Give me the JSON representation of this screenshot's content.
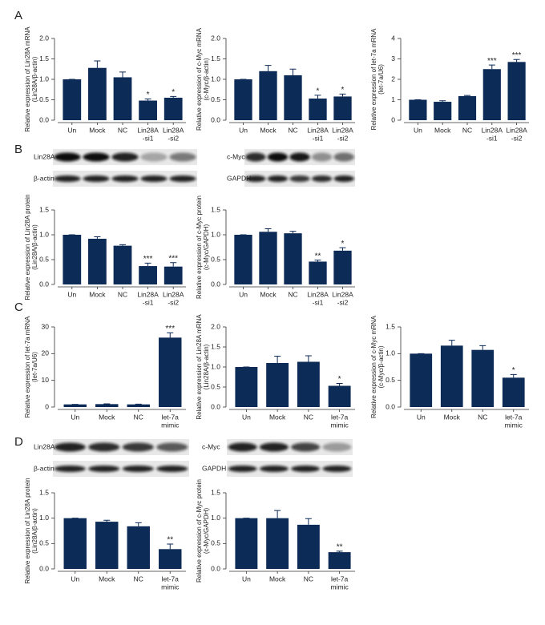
{
  "panel_labels": [
    "A",
    "B",
    "C",
    "D"
  ],
  "blots": [
    {
      "labels": [
        "Lin28A",
        "β-actin"
      ]
    },
    {
      "labels": [
        "c-Myc",
        "GAPDH"
      ]
    },
    {
      "labels": [
        "Lin28A",
        "β-actin"
      ]
    },
    {
      "labels": [
        "c-Myc",
        "GAPDH"
      ]
    }
  ],
  "chart_data": [
    {
      "type": "bar",
      "ylabel": [
        "Relative expression of Lin28A mRNA",
        "(Lin28A/β-actin)"
      ],
      "categories": [
        [
          "Un"
        ],
        [
          "Mock"
        ],
        [
          "NC"
        ],
        [
          "Lin28A",
          "-si1"
        ],
        [
          "Lin28A",
          "-si2"
        ]
      ],
      "values": [
        1.0,
        1.28,
        1.05,
        0.48,
        0.55
      ],
      "errors": [
        0,
        0.17,
        0.13,
        0.04,
        0.03
      ],
      "annotations": [
        null,
        null,
        null,
        "*",
        "*"
      ],
      "color": "#0d2b57",
      "ylim": [
        0,
        2
      ],
      "yticks": [
        {
          "value": 0,
          "label": "0.0"
        },
        0.5,
        {
          "value": 1,
          "label": "1.0"
        },
        1.5,
        {
          "value": 2,
          "label": "2.0"
        }
      ]
    },
    {
      "type": "bar",
      "ylabel": [
        "Relative expression of c-Myc mRNA",
        "(c-Myc/β-actin)"
      ],
      "categories": [
        [
          "Un"
        ],
        [
          "Mock"
        ],
        [
          "NC"
        ],
        [
          "Lin28A",
          "-si1"
        ],
        [
          "Lin28A",
          "-si2"
        ]
      ],
      "values": [
        1.0,
        1.2,
        1.1,
        0.53,
        0.58
      ],
      "errors": [
        0,
        0.14,
        0.15,
        0.08,
        0.06
      ],
      "annotations": [
        null,
        null,
        null,
        "*",
        "*"
      ],
      "color": "#0d2b57",
      "ylim": [
        0,
        2
      ],
      "yticks": [
        {
          "value": 0,
          "label": "0.0"
        },
        0.5,
        {
          "value": 1,
          "label": "1.0"
        },
        1.5,
        {
          "value": 2,
          "label": "2.0"
        }
      ]
    },
    {
      "type": "bar",
      "ylabel": [
        "Relative expression of let-7a mRNA",
        "(let-7a/U6)"
      ],
      "categories": [
        [
          "Un"
        ],
        [
          "Mock"
        ],
        [
          "NC"
        ],
        [
          "Lin28A",
          "-si1"
        ],
        [
          "Lin28A",
          "-si2"
        ]
      ],
      "values": [
        1.0,
        0.9,
        1.18,
        2.5,
        2.85
      ],
      "errors": [
        0,
        0.05,
        0.03,
        0.2,
        0.12
      ],
      "annotations": [
        null,
        null,
        null,
        "***",
        "***"
      ],
      "color": "#0d2b57",
      "ylim": [
        0,
        4
      ],
      "yticks": [
        0,
        1,
        2,
        3,
        4
      ]
    },
    {
      "type": "bar",
      "ylabel": [
        "Relative expression of Lin28A protein",
        "(Lin28A/β-actin)"
      ],
      "categories": [
        [
          "Un"
        ],
        [
          "Mock"
        ],
        [
          "NC"
        ],
        [
          "Lin28A",
          "-si1"
        ],
        [
          "Lin28A",
          "-si2"
        ]
      ],
      "values": [
        1.0,
        0.92,
        0.78,
        0.37,
        0.36
      ],
      "errors": [
        0,
        0.04,
        0.02,
        0.06,
        0.08
      ],
      "annotations": [
        null,
        null,
        null,
        "***",
        "***"
      ],
      "color": "#0d2b57",
      "ylim": [
        0,
        1.5
      ],
      "yticks": [
        {
          "value": 0,
          "label": "0.0"
        },
        0.5,
        {
          "value": 1,
          "label": "1.0"
        },
        1.5
      ]
    },
    {
      "type": "bar",
      "ylabel": [
        "Relative expression of c-Myc protein",
        "(c-Myc/GAPDH)"
      ],
      "categories": [
        [
          "Un"
        ],
        [
          "Mock"
        ],
        [
          "NC"
        ],
        [
          "Lin28A",
          "-si1"
        ],
        [
          "Lin28A",
          "-si2"
        ]
      ],
      "values": [
        1.0,
        1.06,
        1.03,
        0.46,
        0.68
      ],
      "errors": [
        0,
        0.06,
        0.04,
        0.03,
        0.06
      ],
      "annotations": [
        null,
        null,
        null,
        "**",
        "*"
      ],
      "color": "#0d2b57",
      "ylim": [
        0,
        1.5
      ],
      "yticks": [
        {
          "value": 0,
          "label": "0.0"
        },
        0.5,
        {
          "value": 1,
          "label": "1.0"
        },
        1.5
      ]
    },
    {
      "type": "bar",
      "ylabel": [
        "Relative expression of let-7a mRNA",
        "(let-7a/U6)"
      ],
      "categories": [
        [
          "Un"
        ],
        [
          "Mock"
        ],
        [
          "NC"
        ],
        [
          "let-7a",
          "mimic"
        ]
      ],
      "values": [
        1.0,
        1.1,
        1.0,
        26
      ],
      "errors": [
        0,
        0.1,
        0.1,
        1.8
      ],
      "annotations": [
        null,
        null,
        null,
        "***"
      ],
      "color": "#0d2b57",
      "ylim": [
        0,
        30
      ],
      "yticks": [
        0,
        10,
        20,
        30
      ]
    },
    {
      "type": "bar",
      "ylabel": [
        "Relative expression of Lin28A mRNA",
        "(Lin28A/β-actin)"
      ],
      "categories": [
        [
          "Un"
        ],
        [
          "Mock"
        ],
        [
          "NC"
        ],
        [
          "let-7a",
          "mimic"
        ]
      ],
      "values": [
        1.0,
        1.1,
        1.13,
        0.53
      ],
      "errors": [
        0,
        0.17,
        0.15,
        0.06
      ],
      "annotations": [
        null,
        null,
        null,
        "*"
      ],
      "color": "#0d2b57",
      "ylim": [
        0,
        2
      ],
      "yticks": [
        {
          "value": 0,
          "label": "0.0"
        },
        0.5,
        {
          "value": 1,
          "label": "1.0"
        },
        1.5,
        {
          "value": 2,
          "label": "2.0"
        }
      ]
    },
    {
      "type": "bar",
      "ylabel": [
        "Relative expression of c-Myc mRNA",
        "(c-Myc/β-actin)"
      ],
      "categories": [
        [
          "Un"
        ],
        [
          "Mock"
        ],
        [
          "NC"
        ],
        [
          "let-7a",
          "mimic"
        ]
      ],
      "values": [
        1.0,
        1.15,
        1.07,
        0.55
      ],
      "errors": [
        0,
        0.1,
        0.08,
        0.06
      ],
      "annotations": [
        null,
        null,
        null,
        "*"
      ],
      "color": "#0d2b57",
      "ylim": [
        0,
        1.5
      ],
      "yticks": [
        {
          "value": 0,
          "label": "0.0"
        },
        0.5,
        {
          "value": 1,
          "label": "1.0"
        },
        1.5
      ]
    },
    {
      "type": "bar",
      "ylabel": [
        "Relative expression of Lin28A protein",
        "(Lin28A/β-actin)"
      ],
      "categories": [
        [
          "Un"
        ],
        [
          "Mock"
        ],
        [
          "NC"
        ],
        [
          "let-7a",
          "mimic"
        ]
      ],
      "values": [
        1.0,
        0.93,
        0.84,
        0.39
      ],
      "errors": [
        0,
        0.03,
        0.07,
        0.1
      ],
      "annotations": [
        null,
        null,
        null,
        "**"
      ],
      "color": "#0d2b57",
      "ylim": [
        0,
        1.5
      ],
      "yticks": [
        {
          "value": 0,
          "label": "0.0"
        },
        0.5,
        {
          "value": 1,
          "label": "1.0"
        },
        1.5
      ]
    },
    {
      "type": "bar",
      "ylabel": [
        "Relative expression of c-Myc protein",
        "(c-Myc/GAPDH)"
      ],
      "categories": [
        [
          "Un"
        ],
        [
          "Mock"
        ],
        [
          "NC"
        ],
        [
          "let-7a",
          "mimic"
        ]
      ],
      "values": [
        1.0,
        1.0,
        0.87,
        0.33
      ],
      "errors": [
        0,
        0.15,
        0.12,
        0.02
      ],
      "annotations": [
        null,
        null,
        null,
        "**"
      ],
      "color": "#0d2b57",
      "ylim": [
        0,
        1.5
      ],
      "yticks": [
        {
          "value": 0,
          "label": "0.0"
        },
        0.5,
        {
          "value": 1,
          "label": "1.0"
        },
        1.5
      ]
    }
  ]
}
